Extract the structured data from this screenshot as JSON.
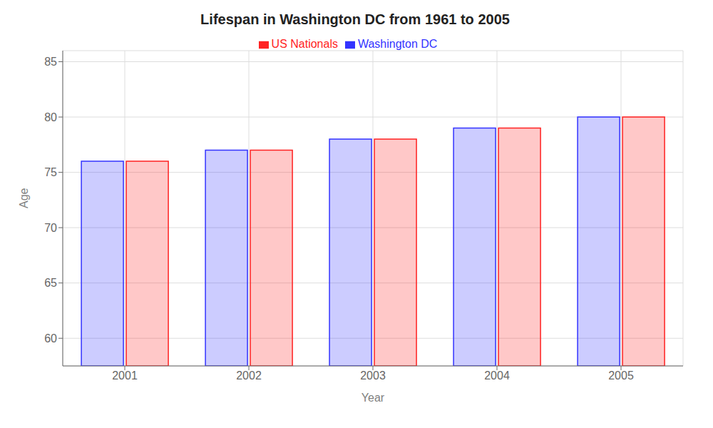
{
  "chart_data": {
    "type": "bar",
    "title": "Lifespan in Washington DC from 1961 to 2005",
    "x_label": "Year",
    "y_label": "Age",
    "categories": [
      "2001",
      "2002",
      "2003",
      "2004",
      "2005"
    ],
    "series": [
      {
        "name": "Washington DC",
        "color": "#3333ff",
        "values": [
          76,
          77,
          78,
          79,
          80
        ]
      },
      {
        "name": "US Nationals",
        "color": "#ff2222",
        "values": [
          76,
          77,
          78,
          79,
          80
        ]
      }
    ],
    "ylim": [
      57.5,
      86
    ],
    "yticks": [
      60,
      65,
      70,
      75,
      80,
      85
    ],
    "grid": true,
    "legend": "top"
  }
}
